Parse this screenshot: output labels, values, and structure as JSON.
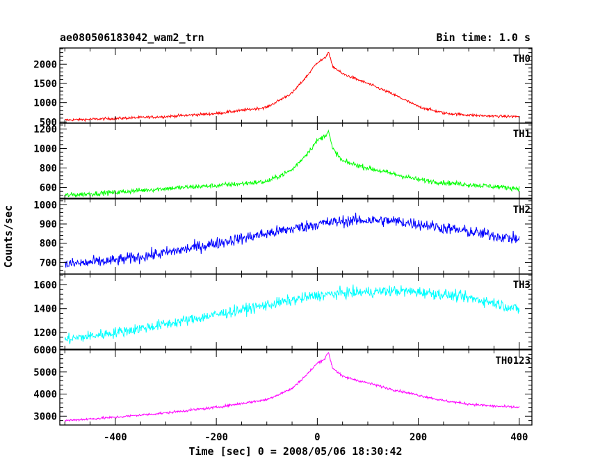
{
  "chart_data": {
    "type": "line",
    "title_left": "ae080506183042_wam2_trn",
    "title_right": "Bin time: 1.0 s",
    "xlabel": "Time [sec] 0 = 2008/05/06 18:30:42",
    "ylabel": "Counts/sec",
    "xlim": [
      -510,
      425
    ],
    "x_ticks": [
      -400,
      -200,
      0,
      200,
      400
    ],
    "grid": false,
    "panels": [
      {
        "name": "TH0",
        "color": "#ff0000",
        "ylim": [
          470,
          2420
        ],
        "y_ticks": [
          500,
          1000,
          1500,
          2000
        ],
        "noise": 35,
        "x": [
          -500,
          -400,
          -300,
          -200,
          -100,
          -50,
          -20,
          0,
          15,
          22,
          30,
          50,
          100,
          150,
          200,
          250,
          300,
          350,
          400
        ],
        "y": [
          550,
          590,
          640,
          720,
          880,
          1250,
          1700,
          2050,
          2150,
          2320,
          1950,
          1750,
          1500,
          1220,
          900,
          730,
          680,
          650,
          640
        ]
      },
      {
        "name": "TH1",
        "color": "#00ff00",
        "ylim": [
          490,
          1260
        ],
        "y_ticks": [
          600,
          800,
          1000,
          1200
        ],
        "noise": 25,
        "x": [
          -500,
          -400,
          -300,
          -200,
          -100,
          -50,
          -20,
          0,
          15,
          22,
          30,
          50,
          100,
          150,
          200,
          250,
          300,
          350,
          400
        ],
        "y": [
          520,
          550,
          590,
          620,
          660,
          780,
          950,
          1080,
          1130,
          1180,
          1000,
          870,
          800,
          740,
          680,
          650,
          630,
          610,
          590
        ]
      },
      {
        "name": "TH2",
        "color": "#0000ff",
        "ylim": [
          640,
          1030
        ],
        "y_ticks": [
          700,
          800,
          900,
          1000
        ],
        "noise": 30,
        "x": [
          -500,
          -400,
          -300,
          -200,
          -100,
          0,
          50,
          100,
          150,
          200,
          250,
          300,
          350,
          400
        ],
        "y": [
          690,
          710,
          750,
          800,
          850,
          900,
          915,
          920,
          915,
          900,
          880,
          860,
          840,
          820
        ]
      },
      {
        "name": "TH3",
        "color": "#00ffff",
        "ylim": [
          1060,
          1690
        ],
        "y_ticks": [
          1200,
          1400,
          1600
        ],
        "noise": 45,
        "x": [
          -500,
          -400,
          -300,
          -200,
          -100,
          0,
          50,
          100,
          150,
          200,
          250,
          300,
          350,
          400
        ],
        "y": [
          1140,
          1200,
          1270,
          1350,
          1430,
          1510,
          1530,
          1540,
          1550,
          1540,
          1520,
          1490,
          1450,
          1390
        ]
      },
      {
        "name": "TH0123",
        "color": "#ff00ff",
        "ylim": [
          2600,
          6000
        ],
        "y_ticks": [
          3000,
          4000,
          5000,
          6000
        ],
        "noise": 55,
        "x": [
          -500,
          -400,
          -300,
          -200,
          -100,
          -50,
          -20,
          0,
          15,
          22,
          30,
          50,
          100,
          150,
          200,
          250,
          300,
          350,
          400
        ],
        "y": [
          2800,
          2950,
          3150,
          3400,
          3750,
          4250,
          4900,
          5400,
          5600,
          5900,
          5200,
          4800,
          4500,
          4200,
          3950,
          3700,
          3550,
          3450,
          3400
        ]
      }
    ]
  }
}
